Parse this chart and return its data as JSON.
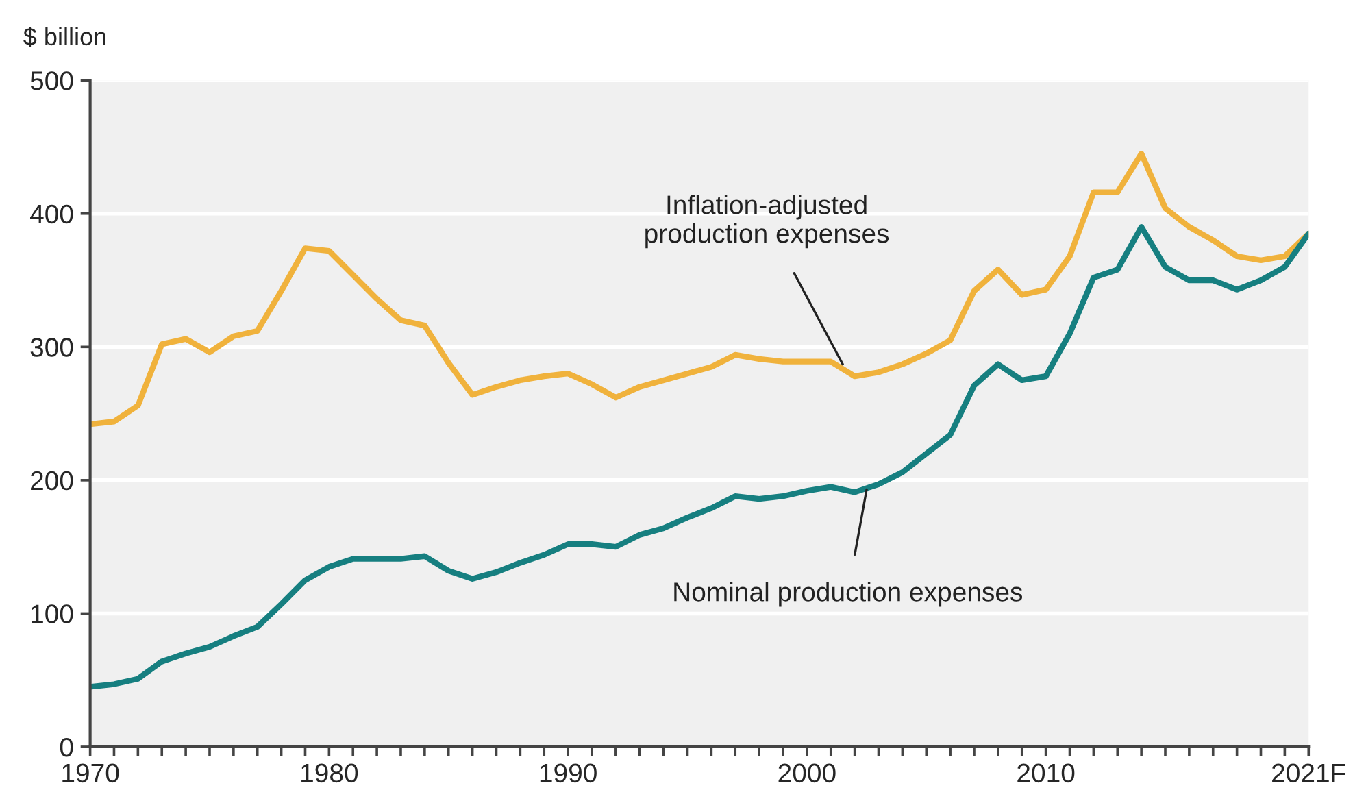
{
  "chart_data": {
    "type": "line",
    "ylabel": "$ billion",
    "x": [
      1970,
      1971,
      1972,
      1973,
      1974,
      1975,
      1976,
      1977,
      1978,
      1979,
      1980,
      1981,
      1982,
      1983,
      1984,
      1985,
      1986,
      1987,
      1988,
      1989,
      1990,
      1991,
      1992,
      1993,
      1994,
      1995,
      1996,
      1997,
      1998,
      1999,
      2000,
      2001,
      2002,
      2003,
      2004,
      2005,
      2006,
      2007,
      2008,
      2009,
      2010,
      2011,
      2012,
      2013,
      2014,
      2015,
      2016,
      2017,
      2018,
      2019,
      2020,
      2021
    ],
    "series": [
      {
        "color": "#f0b23c",
        "values": [
          242,
          244,
          256,
          302,
          306,
          296,
          308,
          312,
          342,
          374,
          372,
          354,
          336,
          320,
          316,
          288,
          264,
          270,
          275,
          278,
          280,
          272,
          262,
          270,
          275,
          280,
          285,
          294,
          291,
          289,
          289,
          289,
          278,
          281,
          287,
          295,
          305,
          342,
          358,
          339,
          343,
          368,
          416,
          416,
          445,
          404,
          390,
          380,
          368,
          365,
          368,
          385
        ]
      },
      {
        "color": "#167f80",
        "values": [
          45,
          47,
          51,
          64,
          70,
          75,
          83,
          90,
          107,
          125,
          135,
          141,
          141,
          141,
          143,
          132,
          126,
          131,
          138,
          144,
          152,
          152,
          150,
          159,
          164,
          172,
          179,
          188,
          186,
          188,
          192,
          195,
          191,
          197,
          206,
          220,
          234,
          271,
          287,
          275,
          278,
          310,
          352,
          358,
          390,
          360,
          350,
          350,
          343,
          350,
          360,
          385
        ]
      }
    ],
    "annotations": [
      {
        "text": "Inflation-adjusted\nproduction expenses",
        "x": 2001.5,
        "y": 287
      },
      {
        "text": "Nominal production expenses",
        "x": 2002.5,
        "y": 193
      }
    ],
    "xlim": [
      1970,
      2021
    ],
    "ylim": [
      0,
      500
    ],
    "xticks": [
      1970,
      {
        "value": 1971,
        "label": null
      },
      {
        "value": 1972,
        "label": null
      },
      {
        "value": 1973,
        "label": null
      },
      {
        "value": 1974,
        "label": null
      },
      {
        "value": 1975,
        "label": null
      },
      {
        "value": 1976,
        "label": null
      },
      {
        "value": 1977,
        "label": null
      },
      {
        "value": 1978,
        "label": null
      },
      {
        "value": 1979,
        "label": null
      },
      1980,
      {
        "value": 1981,
        "label": null
      },
      {
        "value": 1982,
        "label": null
      },
      {
        "value": 1983,
        "label": null
      },
      {
        "value": 1984,
        "label": null
      },
      {
        "value": 1985,
        "label": null
      },
      {
        "value": 1986,
        "label": null
      },
      {
        "value": 1987,
        "label": null
      },
      {
        "value": 1988,
        "label": null
      },
      {
        "value": 1989,
        "label": null
      },
      1990,
      {
        "value": 1991,
        "label": null
      },
      {
        "value": 1992,
        "label": null
      },
      {
        "value": 1993,
        "label": null
      },
      {
        "value": 1994,
        "label": null
      },
      {
        "value": 1995,
        "label": null
      },
      {
        "value": 1996,
        "label": null
      },
      {
        "value": 1997,
        "label": null
      },
      {
        "value": 1998,
        "label": null
      },
      {
        "value": 1999,
        "label": null
      },
      2000,
      {
        "value": 2001,
        "label": null
      },
      {
        "value": 2002,
        "label": null
      },
      {
        "value": 2003,
        "label": null
      },
      {
        "value": 2004,
        "label": null
      },
      {
        "value": 2005,
        "label": null
      },
      {
        "value": 2006,
        "label": null
      },
      {
        "value": 2007,
        "label": null
      },
      {
        "value": 2008,
        "label": null
      },
      {
        "value": 2009,
        "label": null
      },
      2010,
      {
        "value": 2011,
        "label": null
      },
      {
        "value": 2012,
        "label": null
      },
      {
        "value": 2013,
        "label": null
      },
      {
        "value": 2014,
        "label": null
      },
      {
        "value": 2015,
        "label": null
      },
      {
        "value": 2016,
        "label": null
      },
      {
        "value": 2017,
        "label": null
      },
      {
        "value": 2018,
        "label": null
      },
      {
        "value": 2019,
        "label": null
      },
      {
        "value": 2020,
        "label": null
      },
      {
        "value": 2021,
        "label": "2021F"
      }
    ],
    "yticks": [
      0,
      100,
      200,
      300,
      400,
      500
    ],
    "grid": "y",
    "legend": false,
    "marker": "none",
    "line_style": "solid"
  }
}
